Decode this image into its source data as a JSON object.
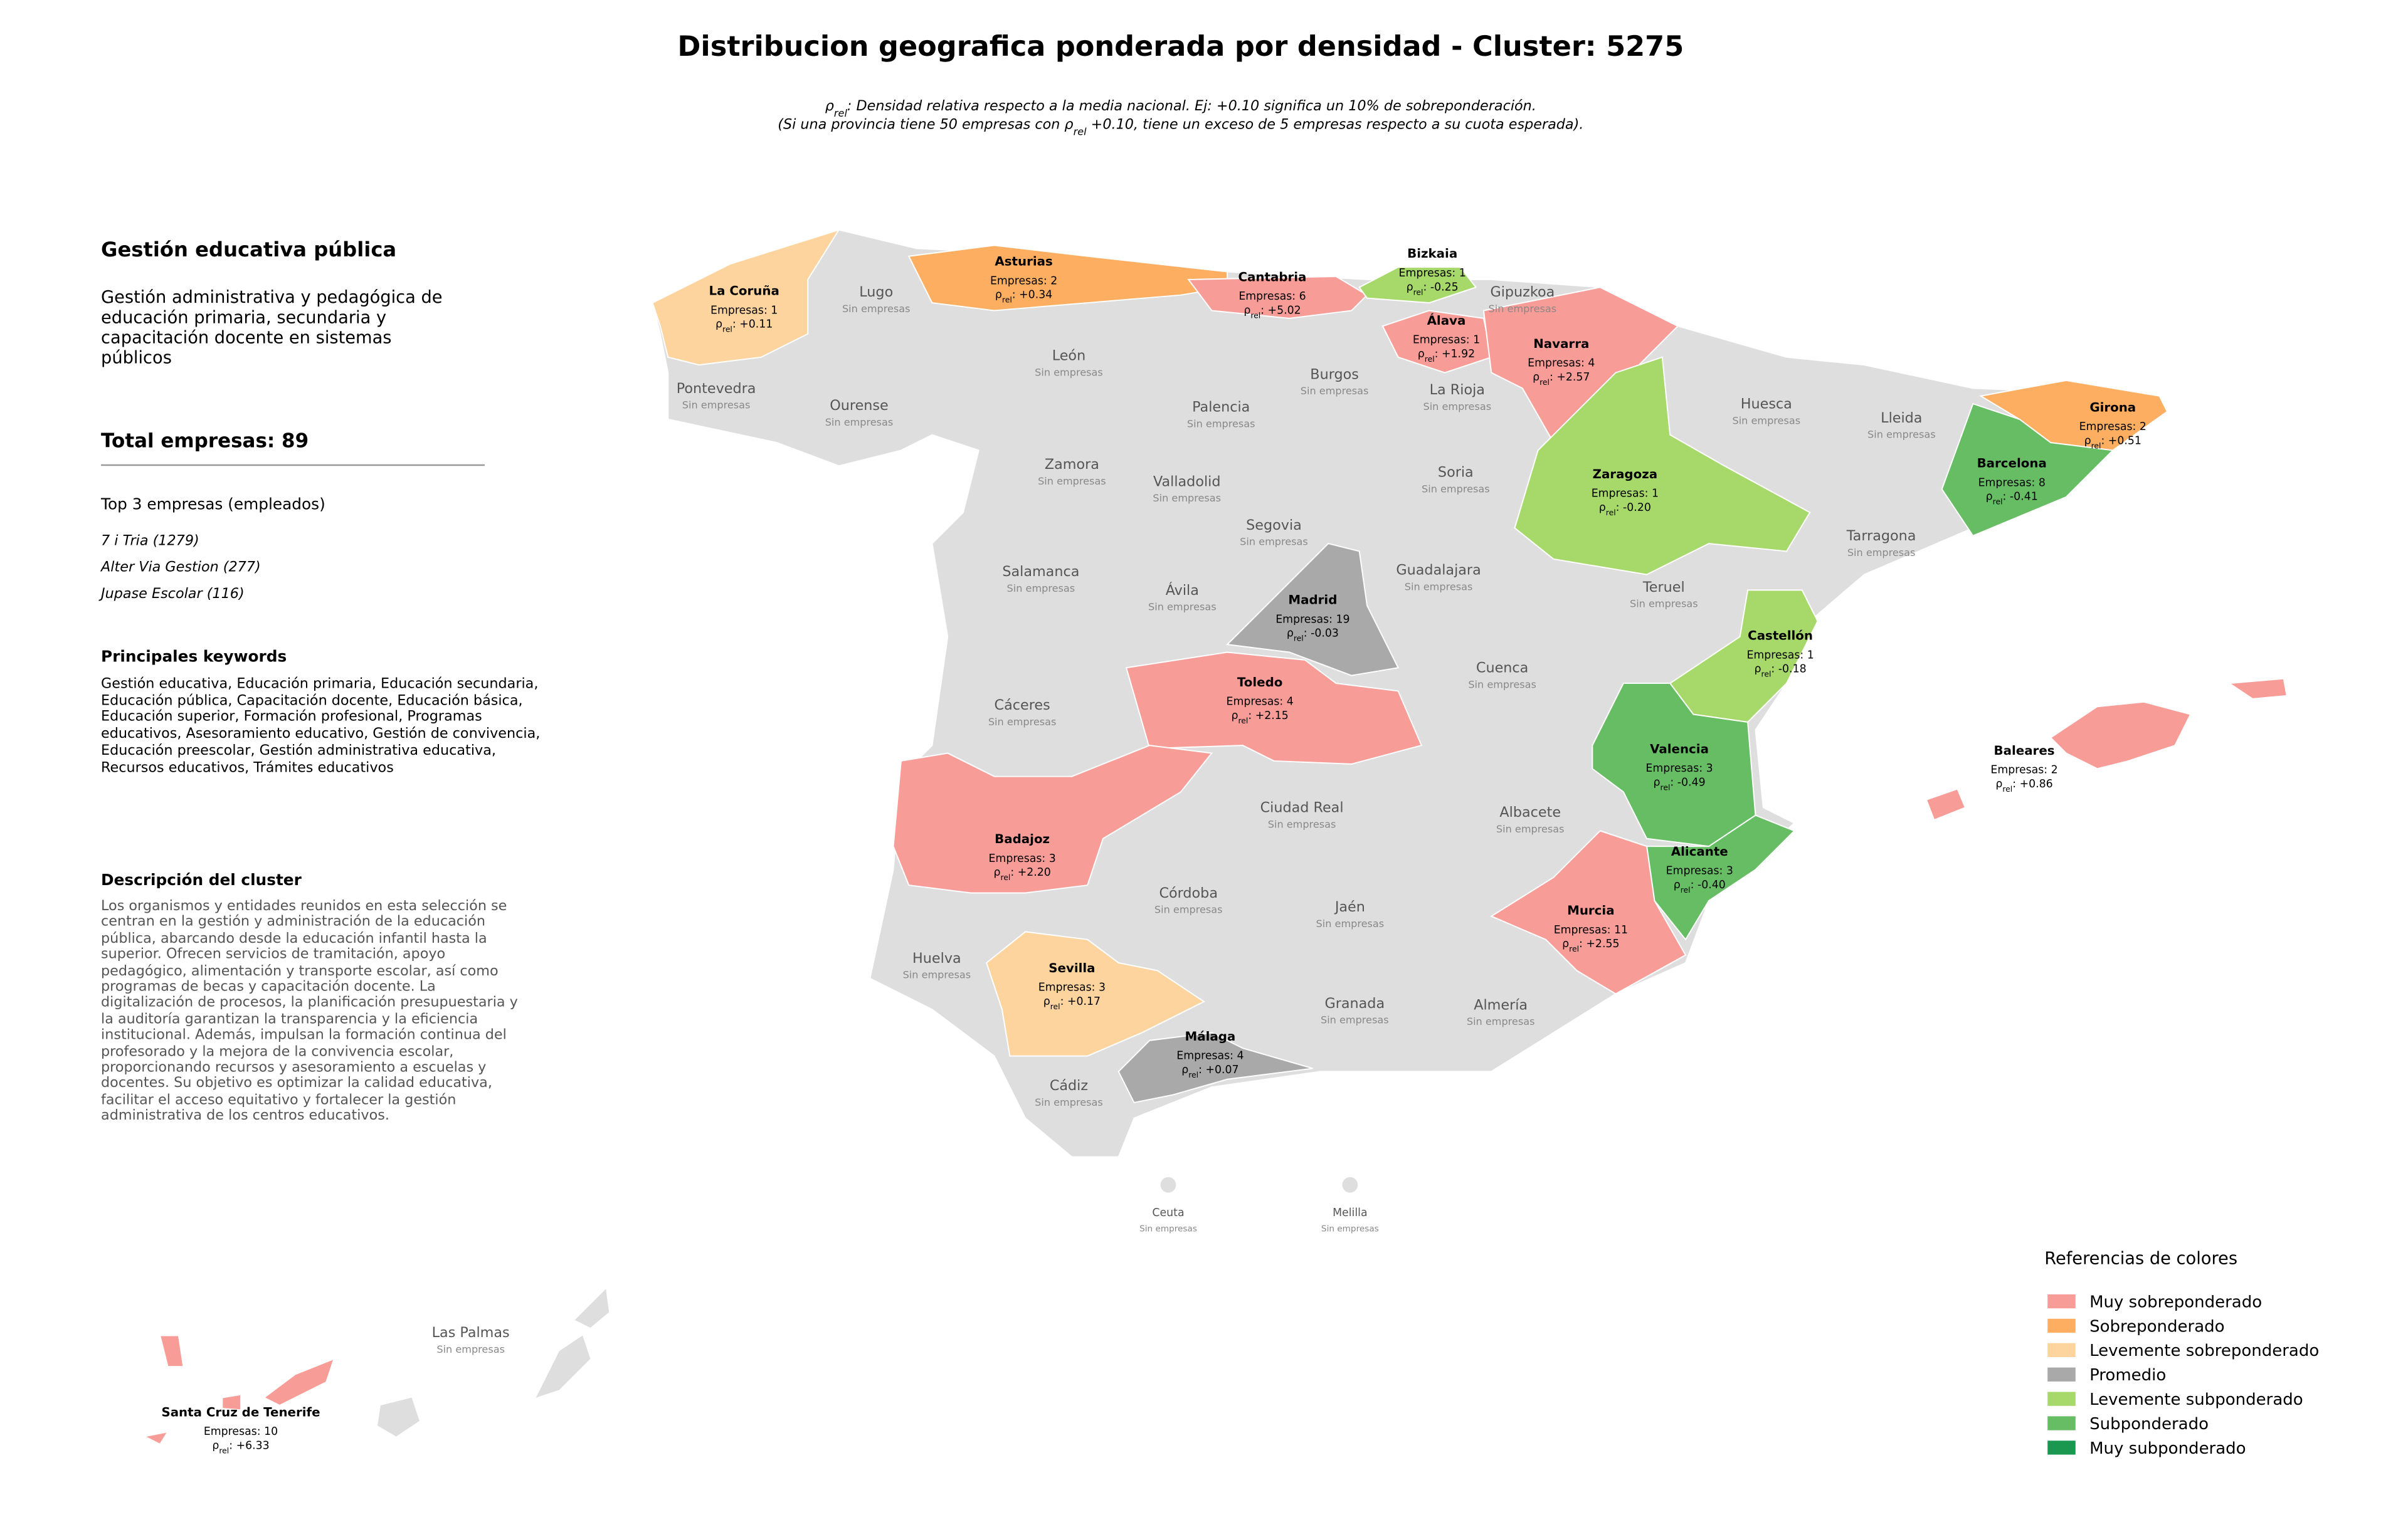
{
  "title": "Distribucion geografica ponderada por densidad - Cluster: 5275",
  "notes": [
    [
      "ρ",
      "rel",
      ": Densidad relativa respecto a la media nacional. Ej: +0.10 significa un 10% de sobreponderación."
    ],
    [
      "(Si una provincia tiene 50 empresas con ρ",
      "rel",
      " +0.10, tiene un exceso de 5 empresas respecto a su cuota esperada)."
    ]
  ],
  "sidebar": {
    "heading": "Gestión educativa pública",
    "description": "Gestión administrativa y pedagógica de educación primaria, secundaria y capacitación docente en sistemas públicos",
    "total": "Total empresas: 89",
    "top_title": "Top 3 empresas (empleados)",
    "top": [
      "7 i Tria (1279)",
      "Alter Via Gestion (277)",
      "Jupase Escolar (116)"
    ],
    "keywords_title": "Principales keywords",
    "keywords": "Gestión educativa, Educación primaria, Educación secundaria, Educación pública, Capacitación docente, Educación básica, Educación superior, Formación profesional, Programas educativos, Asesoramiento educativo, Gestión de convivencia, Educación preescolar, Gestión administrativa educativa, Recursos educativos, Trámites educativos",
    "cluster_title": "Descripción del cluster",
    "cluster_text": "Los organismos y entidades reunidos en esta selección se centran en la gestión y administración de la educación pública, abarcando desde la educación infantil hasta la superior. Ofrecen servicios de tramitación, apoyo pedagógico, alimentación y transporte escolar, así como programas de becas y capacitación docente. La digitalización de procesos, la planificación presupuestaria y la auditoría garantizan la transparencia y la eficiencia institucional. Además, impulsan la formación continua del profesorado y la mejora de la convivencia escolar, proporcionando recursos y asesoramiento a escuelas y docentes. Su objetivo es optimizar la calidad educativa, facilitar el acceso equitativo y fortalecer la gestión administrativa de los centros educativos."
  },
  "rho_symbol": "ρ",
  "rho_sub": "rel",
  "rho_sep": ": ",
  "provinces": [
    {
      "name": "La Coruña",
      "empresas": "Empresas: 1",
      "rho": "+0.11",
      "color": "#fdd49e"
    },
    {
      "name": "Asturias",
      "empresas": "Empresas: 2",
      "rho": "+0.34",
      "color": "#fdae61"
    },
    {
      "name": "Cantabria",
      "empresas": "Empresas: 6",
      "rho": "+5.02",
      "color": "#f89c97"
    },
    {
      "name": "Bizkaia",
      "empresas": "Empresas: 1",
      "rho": "-0.25",
      "color": "#a6d96a"
    },
    {
      "name": "Álava",
      "empresas": "Empresas: 1",
      "rho": "+1.92",
      "color": "#f89c97"
    },
    {
      "name": "Navarra",
      "empresas": "Empresas: 4",
      "rho": "+2.57",
      "color": "#f89c97"
    },
    {
      "name": "Zaragoza",
      "empresas": "Empresas: 1",
      "rho": "-0.20",
      "color": "#a6d96a"
    },
    {
      "name": "Girona",
      "empresas": "Empresas: 2",
      "rho": "+0.51",
      "color": "#fdae61"
    },
    {
      "name": "Barcelona",
      "empresas": "Empresas: 8",
      "rho": "-0.41",
      "color": "#66bd63"
    },
    {
      "name": "Madrid",
      "empresas": "Empresas: 19",
      "rho": "-0.03",
      "color": "#a9a9a9"
    },
    {
      "name": "Toledo",
      "empresas": "Empresas: 4",
      "rho": "+2.15",
      "color": "#f89c97"
    },
    {
      "name": "Castellón",
      "empresas": "Empresas: 1",
      "rho": "-0.18",
      "color": "#a6d96a"
    },
    {
      "name": "Valencia",
      "empresas": "Empresas: 3",
      "rho": "-0.49",
      "color": "#66bd63"
    },
    {
      "name": "Alicante",
      "empresas": "Empresas: 3",
      "rho": "-0.40",
      "color": "#66bd63"
    },
    {
      "name": "Murcia",
      "empresas": "Empresas: 11",
      "rho": "+2.55",
      "color": "#f89c97"
    },
    {
      "name": "Badajoz",
      "empresas": "Empresas: 3",
      "rho": "+2.20",
      "color": "#f89c97"
    },
    {
      "name": "Sevilla",
      "empresas": "Empresas: 3",
      "rho": "+0.17",
      "color": "#fdd49e"
    },
    {
      "name": "Málaga",
      "empresas": "Empresas: 4",
      "rho": "+0.07",
      "color": "#a9a9a9"
    },
    {
      "name": "Baleares",
      "empresas": "Empresas: 2",
      "rho": "+0.86",
      "color": "#f89c97"
    },
    {
      "name": "Santa Cruz de Tenerife",
      "empresas": "Empresas: 10",
      "rho": "+6.33",
      "color": "#f89c97"
    }
  ],
  "empty_note": "Sin empresas",
  "empty_provinces": [
    "Lugo",
    "Pontevedra",
    "Ourense",
    "León",
    "Palencia",
    "Burgos",
    "La Rioja",
    "Gipuzkoa",
    "Huesca",
    "Lleida",
    "Zamora",
    "Valladolid",
    "Soria",
    "Segovia",
    "Tarragona",
    "Salamanca",
    "Ávila",
    "Guadalajara",
    "Teruel",
    "Cáceres",
    "Cuenca",
    "Ciudad Real",
    "Albacete",
    "Córdoba",
    "Jaén",
    "Huelva",
    "Granada",
    "Almería",
    "Cádiz",
    "Ceuta",
    "Melilla",
    "Las Palmas"
  ],
  "legend": {
    "title": "Referencias de colores",
    "items": [
      {
        "label": "Muy sobreponderado",
        "color": "#f89c97"
      },
      {
        "label": "Sobreponderado",
        "color": "#fdae61"
      },
      {
        "label": "Levemente sobreponderado",
        "color": "#fdd49e"
      },
      {
        "label": "Promedio",
        "color": "#a9a9a9"
      },
      {
        "label": "Levemente subponderado",
        "color": "#a6d96a"
      },
      {
        "label": "Subponderado",
        "color": "#66bd63"
      },
      {
        "label": "Muy subponderado",
        "color": "#1a9850"
      }
    ]
  }
}
